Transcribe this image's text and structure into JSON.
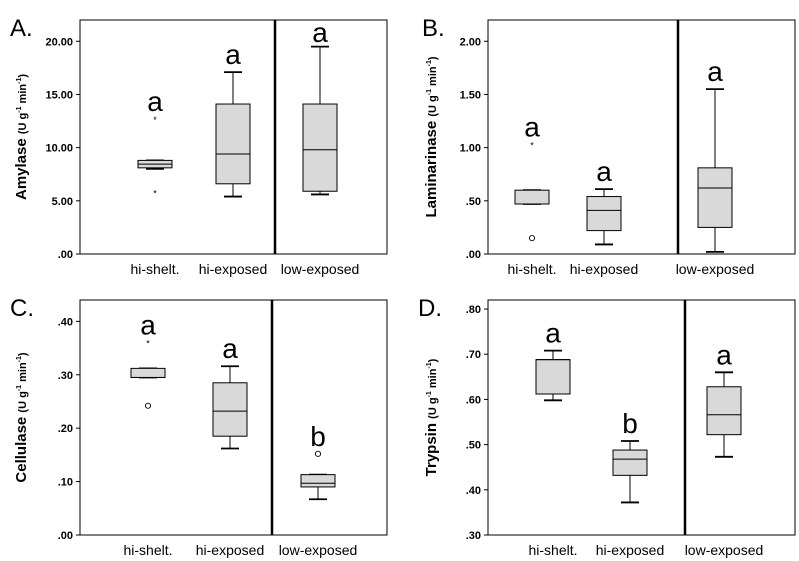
{
  "chart_data": [
    {
      "panel": "A.",
      "type": "box",
      "ylabel": {
        "main": "Amylase",
        "unit_pre": "(U g",
        "unit_sup1": "-1",
        "unit_mid": " min",
        "unit_sup2": "-1",
        "unit_post": ")"
      },
      "ylim": [
        0,
        22
      ],
      "yticks": [
        0,
        5,
        10,
        15,
        20
      ],
      "ytick_labels": [
        ".00",
        "5.00",
        "10.00",
        "15.00",
        "20.00"
      ],
      "divider_after": 1,
      "categories": [
        "hi-shelt.",
        "hi-exposed",
        "low-exposed"
      ],
      "boxes": [
        {
          "min": 8.0,
          "q1": 8.1,
          "median": 8.45,
          "q3": 8.8,
          "max": 8.8,
          "outliers": [],
          "extremes": [
            12.7,
            5.8
          ],
          "label": "a"
        },
        {
          "min": 5.4,
          "q1": 6.6,
          "median": 9.4,
          "q3": 14.1,
          "max": 17.1,
          "outliers": [],
          "extremes": [],
          "label": "a"
        },
        {
          "min": 5.6,
          "q1": 5.9,
          "median": 9.8,
          "q3": 14.1,
          "max": 19.5,
          "outliers": [],
          "extremes": [],
          "label": "a"
        }
      ]
    },
    {
      "panel": "B.",
      "type": "box",
      "ylabel": {
        "main": "Laminarinase",
        "unit_pre": "(U g",
        "unit_sup1": "-1",
        "unit_mid": " min",
        "unit_sup2": "-1",
        "unit_post": ")"
      },
      "ylim": [
        0,
        2.2
      ],
      "yticks": [
        0,
        0.5,
        1.0,
        1.5,
        2.0
      ],
      "ytick_labels": [
        ".00",
        ".50",
        "1.00",
        "1.50",
        "2.00"
      ],
      "divider_after": 2,
      "categories": [
        "hi-shelt.",
        "hi-exposed",
        "low-exposed"
      ],
      "boxes": [
        {
          "min": 0.47,
          "q1": 0.47,
          "median": 0.47,
          "q3": 0.6,
          "max": 0.6,
          "outliers": [
            0.15
          ],
          "extremes": [
            1.03
          ],
          "label": "a"
        },
        {
          "min": 0.09,
          "q1": 0.22,
          "median": 0.41,
          "q3": 0.54,
          "max": 0.61,
          "outliers": [],
          "extremes": [],
          "label": "a"
        },
        {
          "min": 0.02,
          "q1": 0.25,
          "median": 0.62,
          "q3": 0.81,
          "max": 1.55,
          "outliers": [],
          "extremes": [],
          "label": "a"
        }
      ]
    },
    {
      "panel": "C.",
      "type": "box",
      "ylabel": {
        "main": "Cellulase",
        "unit_pre": "(U g",
        "unit_sup1": "-1",
        "unit_mid": " min",
        "unit_sup2": "-1",
        "unit_post": ")"
      },
      "ylim": [
        0,
        0.44
      ],
      "yticks": [
        0,
        0.1,
        0.2,
        0.3,
        0.4
      ],
      "ytick_labels": [
        ".00",
        ".10",
        ".20",
        ".30",
        ".40"
      ],
      "divider_after": 1,
      "categories": [
        "hi-shelt.",
        "hi-exposed",
        "low-exposed"
      ],
      "boxes": [
        {
          "min": 0.295,
          "q1": 0.295,
          "median": 0.295,
          "q3": 0.312,
          "max": 0.312,
          "outliers": [
            0.242
          ],
          "extremes": [
            0.36
          ],
          "label": "a"
        },
        {
          "min": 0.162,
          "q1": 0.185,
          "median": 0.232,
          "q3": 0.285,
          "max": 0.316,
          "outliers": [],
          "extremes": [],
          "label": "a"
        },
        {
          "min": 0.067,
          "q1": 0.09,
          "median": 0.097,
          "q3": 0.113,
          "max": 0.113,
          "outliers": [
            0.152
          ],
          "extremes": [],
          "label": "b"
        }
      ]
    },
    {
      "panel": "D.",
      "type": "box",
      "ylabel": {
        "main": "Trypsin",
        "unit_pre": "(U g",
        "unit_sup1": "-1",
        "unit_mid": " min",
        "unit_sup2": "-1",
        "unit_post": ")"
      },
      "ylim": [
        0.3,
        0.82
      ],
      "yticks": [
        0.3,
        0.4,
        0.5,
        0.6,
        0.7,
        0.8
      ],
      "ytick_labels": [
        ".30",
        ".40",
        ".50",
        ".60",
        ".70",
        ".80"
      ],
      "divider_after": 2,
      "categories": [
        "hi-shelt.",
        "hi-exposed",
        "low-exposed"
      ],
      "boxes": [
        {
          "min": 0.598,
          "q1": 0.612,
          "median": 0.688,
          "q3": 0.688,
          "max": 0.708,
          "outliers": [],
          "extremes": [],
          "label": "a"
        },
        {
          "min": 0.372,
          "q1": 0.432,
          "median": 0.468,
          "q3": 0.488,
          "max": 0.508,
          "outliers": [],
          "extremes": [],
          "label": "b"
        },
        {
          "min": 0.473,
          "q1": 0.522,
          "median": 0.566,
          "q3": 0.628,
          "max": 0.66,
          "outliers": [],
          "extremes": [],
          "label": "a"
        }
      ]
    }
  ]
}
